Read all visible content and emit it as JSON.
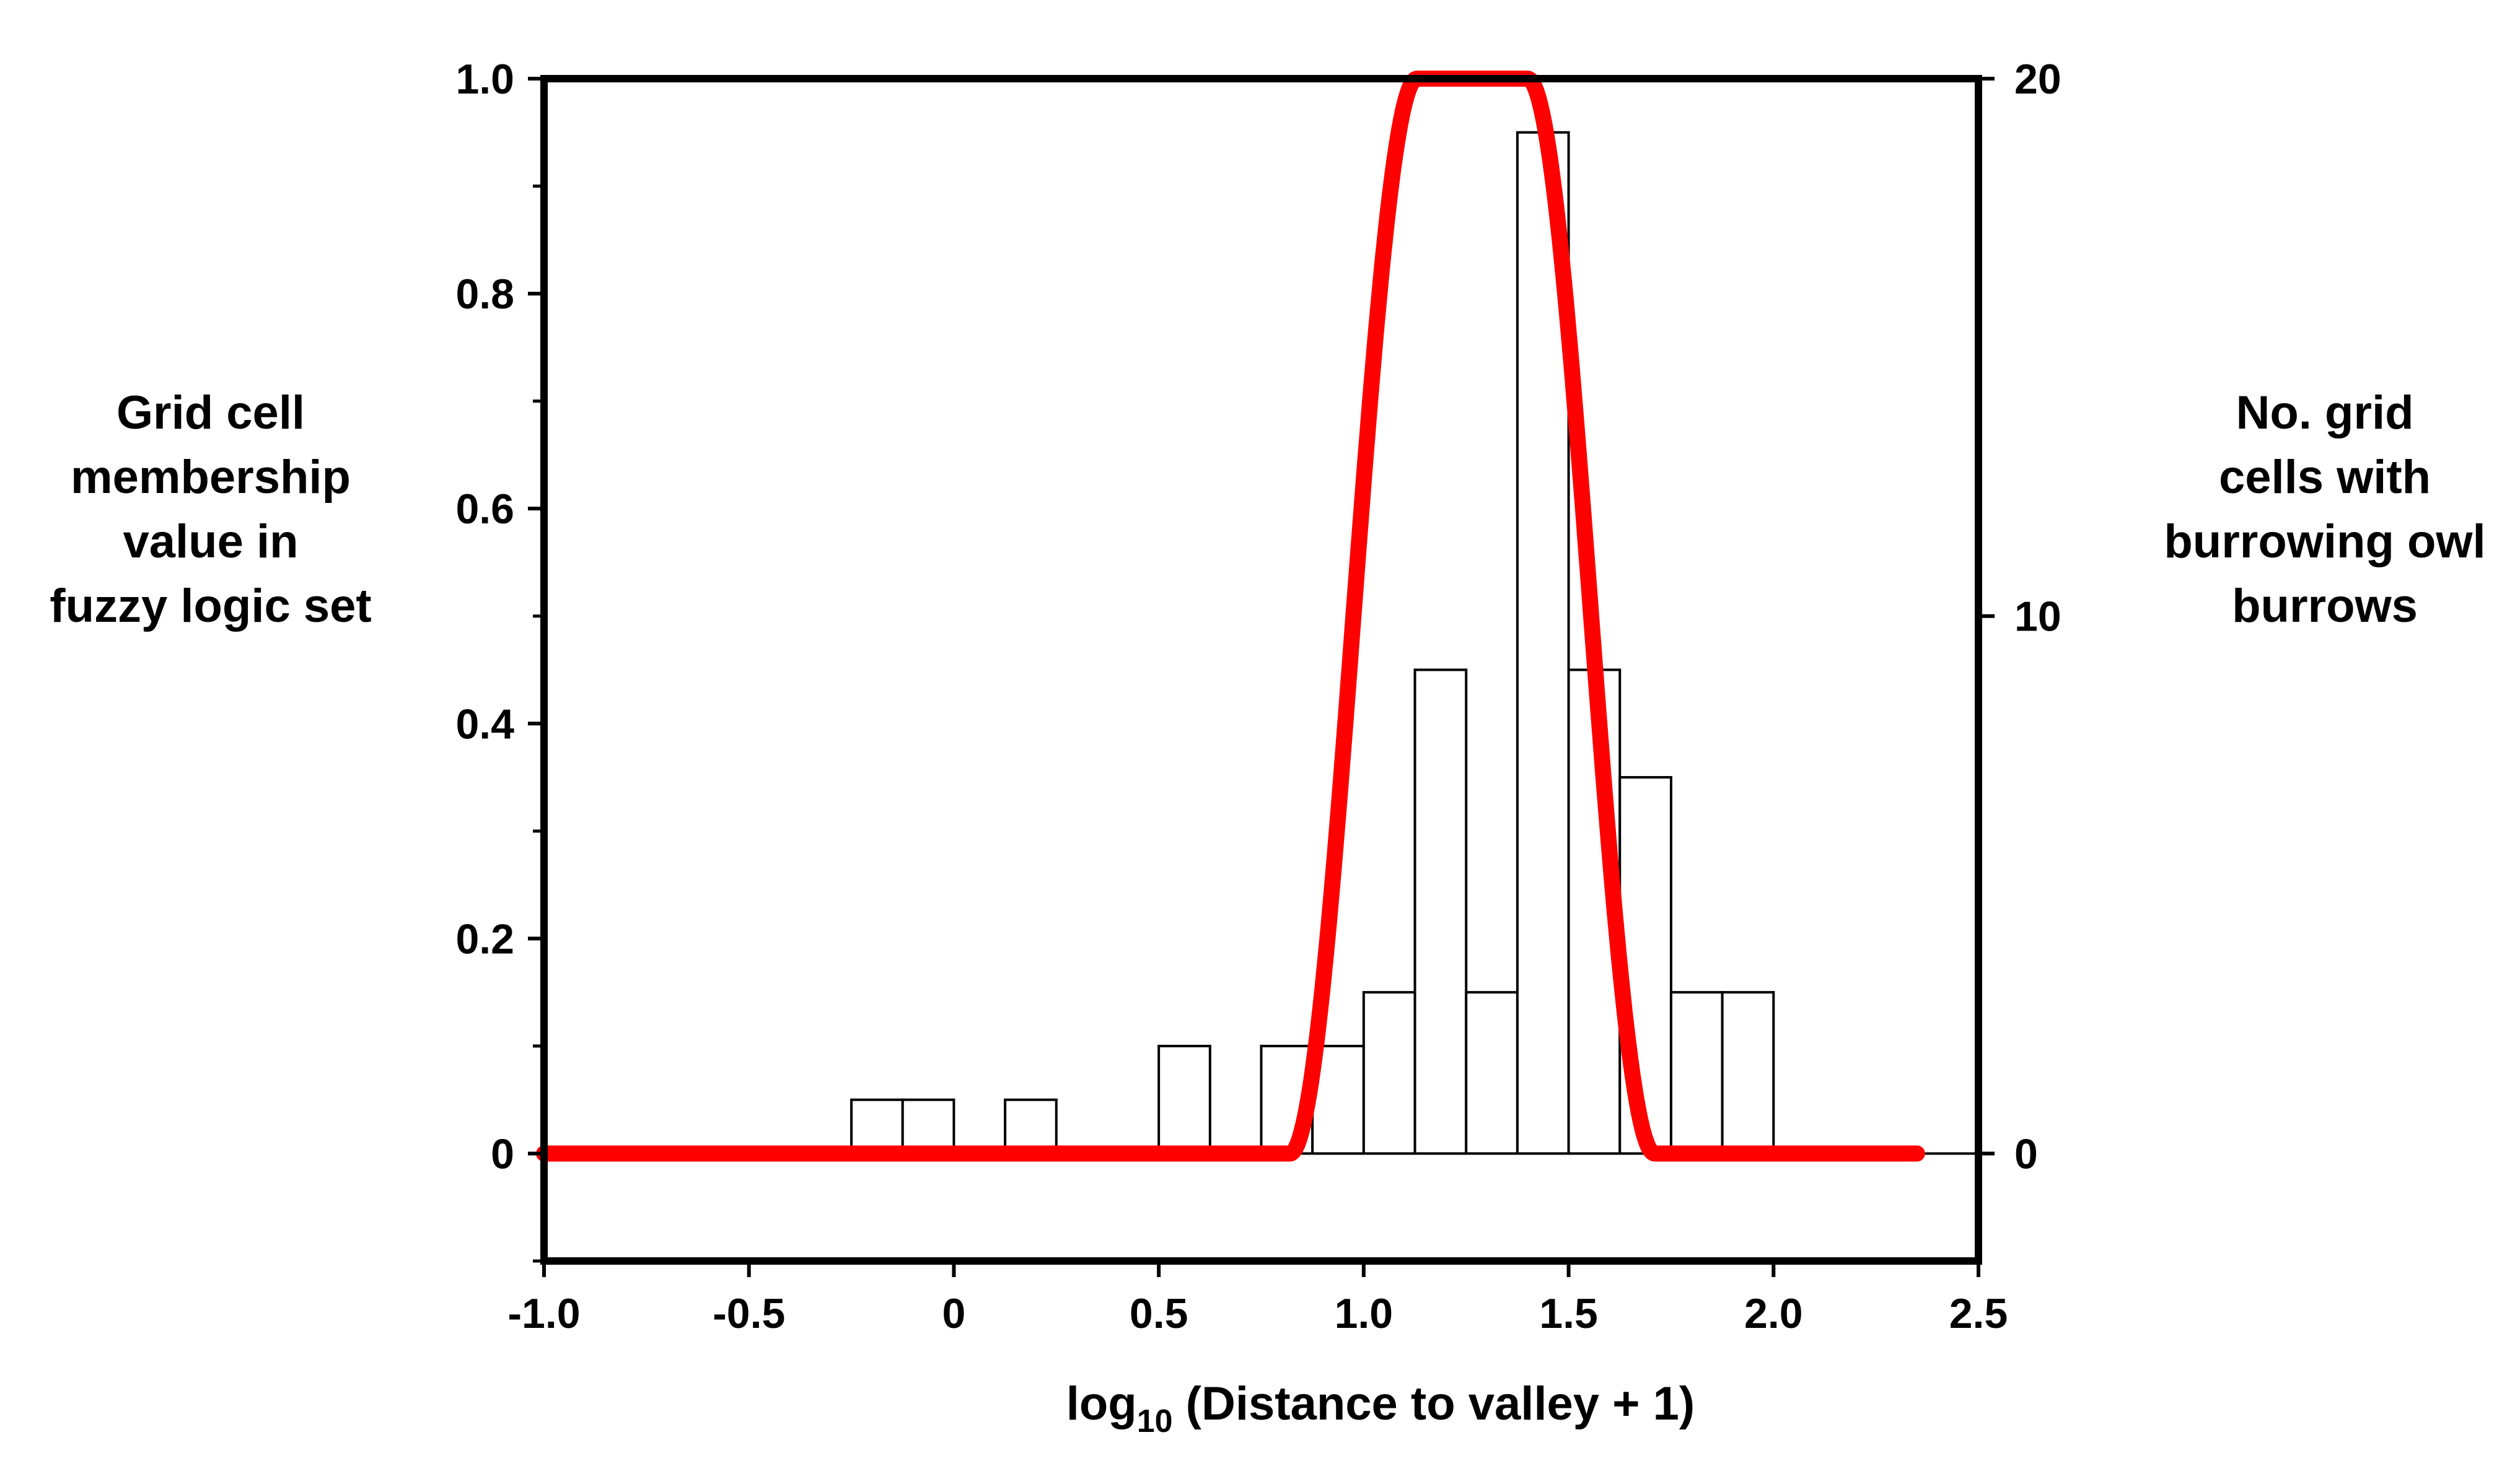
{
  "chart_data": {
    "type": "bar",
    "title": "",
    "xlabel": {
      "prefix": "log",
      "subscript": "10",
      "suffix": " (Distance to valley + 1)"
    },
    "ylabel_left": [
      "Grid cell",
      "membership",
      "value in",
      "fuzzy logic set"
    ],
    "ylabel_right": [
      "No. grid",
      "cells with",
      "burrowing owl",
      "burrows"
    ],
    "xlim": [
      -1.0,
      2.5
    ],
    "ylim_left": [
      -0.1,
      1.0
    ],
    "ylim_right": [
      -2,
      20
    ],
    "x_ticks": [
      {
        "value": -1.0,
        "label": "-1.0"
      },
      {
        "value": -0.5,
        "label": "-0.5"
      },
      {
        "value": 0,
        "label": "0"
      },
      {
        "value": 0.5,
        "label": "0.5"
      },
      {
        "value": 1.0,
        "label": "1.0"
      },
      {
        "value": 1.5,
        "label": "1.5"
      },
      {
        "value": 2.0,
        "label": "2.0"
      },
      {
        "value": 2.5,
        "label": "2.5"
      }
    ],
    "y_left_ticks": [
      {
        "value": 0,
        "label": "0"
      },
      {
        "value": 0.2,
        "label": "0.2"
      },
      {
        "value": 0.4,
        "label": "0.4"
      },
      {
        "value": 0.6,
        "label": "0.6"
      },
      {
        "value": 0.8,
        "label": "0.8"
      },
      {
        "value": 1.0,
        "label": "1.0"
      }
    ],
    "y_left_minor_ticks": [
      -0.1,
      0.1,
      0.3,
      0.5,
      0.7,
      0.9
    ],
    "y_right_ticks": [
      {
        "value": 0,
        "label": "0"
      },
      {
        "value": 10,
        "label": "10"
      },
      {
        "value": 20,
        "label": "20"
      }
    ],
    "histogram": {
      "name": "No. grid cells with burrowing owl burrows",
      "axis": "right",
      "bin_width": 0.125,
      "bins": [
        {
          "start": -0.25,
          "count": 1
        },
        {
          "start": -0.125,
          "count": 1
        },
        {
          "start": 0.125,
          "count": 1
        },
        {
          "start": 0.5,
          "count": 2
        },
        {
          "start": 0.75,
          "count": 2
        },
        {
          "start": 0.875,
          "count": 2
        },
        {
          "start": 1.0,
          "count": 3
        },
        {
          "start": 1.125,
          "count": 9
        },
        {
          "start": 1.25,
          "count": 3
        },
        {
          "start": 1.375,
          "count": 19
        },
        {
          "start": 1.5,
          "count": 9
        },
        {
          "start": 1.625,
          "count": 7
        },
        {
          "start": 1.75,
          "count": 3
        },
        {
          "start": 1.875,
          "count": 3
        }
      ]
    },
    "membership_curve": {
      "name": "Grid cell membership value in fuzzy logic set",
      "axis": "left",
      "color": "#ff0000",
      "x_range": [
        -1.0,
        2.35
      ],
      "zero_until": 0.82,
      "one_from": 1.13,
      "one_until": 1.4,
      "zero_from": 1.71,
      "baseline_zero_line": true
    },
    "grid": false,
    "legend": "none"
  }
}
